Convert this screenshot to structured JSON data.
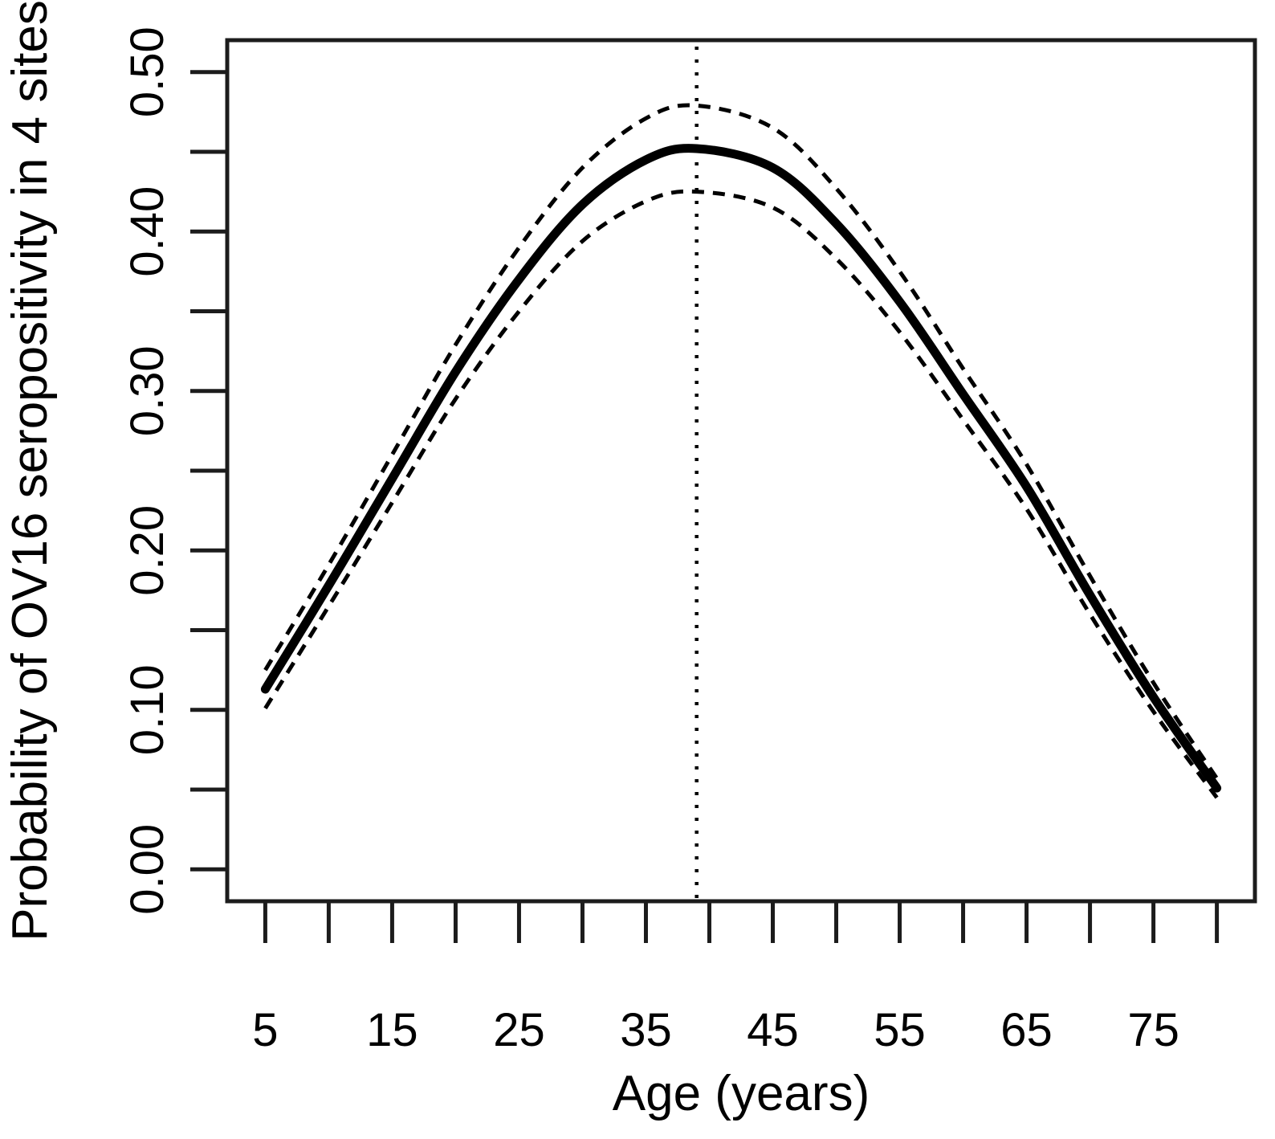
{
  "figure": {
    "background": "#ffffff",
    "description": "R-style statistical plot: age-seroprevalence curve with 95% confidence band"
  },
  "chart_data": {
    "type": "line",
    "title": "",
    "xlabel": "Age (years)",
    "ylabel": "Probability of OV16 seropositivity in 4 sites",
    "xlim": [
      5,
      80
    ],
    "ylim": [
      0.0,
      0.5
    ],
    "axis_expansion": 0.04,
    "grid": false,
    "legend": null,
    "x": [
      5,
      10,
      15,
      20,
      25,
      30,
      35,
      39,
      45,
      50,
      55,
      60,
      65,
      70,
      75,
      80
    ],
    "series": [
      {
        "name": "fitted-probability",
        "style": "solid",
        "values": [
          0.113,
          0.178,
          0.245,
          0.312,
          0.37,
          0.417,
          0.445,
          0.452,
          0.44,
          0.405,
          0.356,
          0.298,
          0.24,
          0.172,
          0.108,
          0.051
        ]
      },
      {
        "name": "upper-95ci",
        "style": "dashed",
        "values": [
          0.125,
          0.191,
          0.26,
          0.329,
          0.39,
          0.44,
          0.471,
          0.479,
          0.465,
          0.427,
          0.375,
          0.314,
          0.254,
          0.184,
          0.117,
          0.057
        ]
      },
      {
        "name": "lower-95ci",
        "style": "dashed",
        "values": [
          0.101,
          0.165,
          0.23,
          0.295,
          0.35,
          0.394,
          0.419,
          0.425,
          0.415,
          0.383,
          0.337,
          0.282,
          0.226,
          0.16,
          0.099,
          0.045
        ]
      }
    ],
    "vline_x": 39,
    "x_ticks": [
      5,
      10,
      15,
      20,
      25,
      30,
      35,
      40,
      45,
      50,
      55,
      60,
      65,
      70,
      75,
      80
    ],
    "x_tick_labels": [
      {
        "v": 5,
        "label": "5"
      },
      {
        "v": 15,
        "label": "15"
      },
      {
        "v": 25,
        "label": "25"
      },
      {
        "v": 35,
        "label": "35"
      },
      {
        "v": 45,
        "label": "45"
      },
      {
        "v": 55,
        "label": "55"
      },
      {
        "v": 65,
        "label": "65"
      },
      {
        "v": 75,
        "label": "75"
      }
    ],
    "y_ticks": [
      0.0,
      0.05,
      0.1,
      0.15,
      0.2,
      0.25,
      0.3,
      0.35,
      0.4,
      0.45,
      0.5
    ],
    "y_tick_labels": [
      {
        "v": 0.0,
        "label": "0.00"
      },
      {
        "v": 0.1,
        "label": "0.10"
      },
      {
        "v": 0.2,
        "label": "0.20"
      },
      {
        "v": 0.3,
        "label": "0.30"
      },
      {
        "v": 0.4,
        "label": "0.40"
      },
      {
        "v": 0.5,
        "label": "0.50"
      }
    ],
    "colors": {
      "curve": "#000000",
      "ci": "#000000",
      "vline": "#000000",
      "axis": "#1c1c1c",
      "text": "#000000",
      "background": "#ffffff"
    }
  }
}
